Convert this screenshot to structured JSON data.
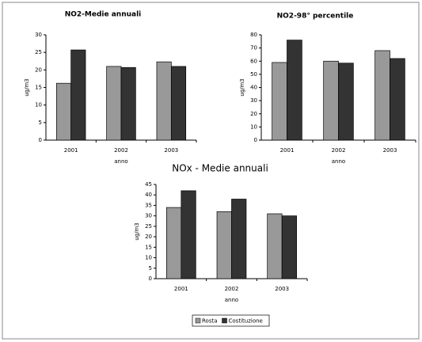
{
  "chart_data": [
    {
      "type": "bar",
      "title": "NO2-Medie annuali",
      "y_label": "ug/m3",
      "x_label": "anno",
      "categories": [
        "2001",
        "2002",
        "2003"
      ],
      "series": [
        {
          "color": "#999999",
          "values": [
            16.2,
            21,
            22.3
          ]
        },
        {
          "color": "#333333",
          "values": [
            25.7,
            20.7,
            21
          ]
        }
      ],
      "ylim": [
        0,
        30
      ],
      "yticks": [
        0,
        5,
        10,
        15,
        20,
        25,
        30
      ]
    },
    {
      "type": "bar",
      "title": "NO2-98° percentile",
      "y_label": "ug/m3",
      "x_label": "anno",
      "categories": [
        "2001",
        "2002",
        "2003"
      ],
      "series": [
        {
          "color": "#999999",
          "values": [
            59,
            60,
            68
          ]
        },
        {
          "color": "#333333",
          "values": [
            76,
            58.5,
            62
          ]
        }
      ],
      "ylim": [
        0,
        80
      ],
      "yticks": [
        0,
        10,
        20,
        30,
        40,
        50,
        60,
        70,
        80
      ]
    },
    {
      "type": "bar",
      "title": "NOx - Medie annuali",
      "y_label": "ug/m3",
      "x_label": "anno",
      "categories": [
        "2001",
        "2002",
        "2003"
      ],
      "series": [
        {
          "name": "Rosta",
          "color": "#999999",
          "values": [
            34,
            32,
            31
          ]
        },
        {
          "name": "Costituzione",
          "color": "#333333",
          "values": [
            42,
            38,
            30
          ]
        }
      ],
      "ylim": [
        0,
        45
      ],
      "yticks": [
        0,
        5,
        10,
        15,
        20,
        25,
        30,
        35,
        40,
        45
      ],
      "legend": "bottom"
    }
  ]
}
